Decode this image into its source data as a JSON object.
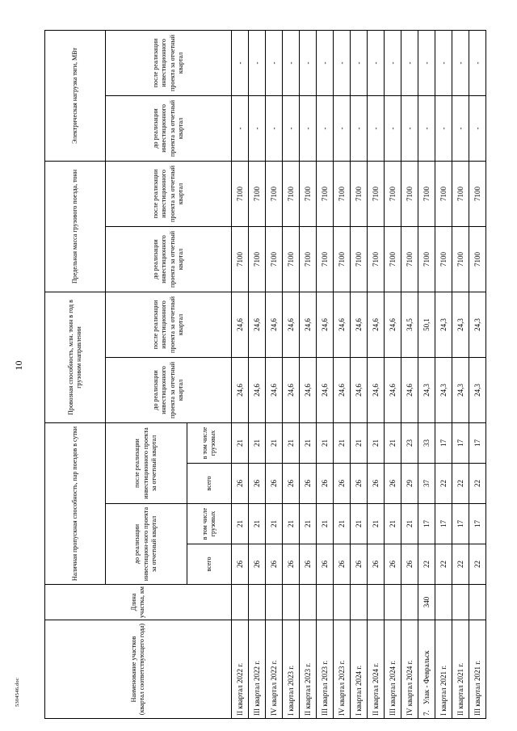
{
  "page": {
    "number": "10",
    "doc_code": "5304546.doc"
  },
  "table": {
    "headers": {
      "name": "Наименование участков\n(квартал соответствующего года)",
      "length": "Длина участка, км",
      "capacity_group": "Наличная пропускная способность, пар поездов в сутки",
      "capacity_before": "до реализации инвестицион-ного проекта за отчетный квартал",
      "capacity_after": "после реализации инвестиционного проекта за отчетный квартал",
      "total": "всего",
      "freight": "в том числе грузовых",
      "carrying_group": "Провозная способность, млн. тонн в год в грузовом направлении",
      "mass_group": "Предельная масса грузового поезда, тонн",
      "electric_group": "Электрическая нагрузка тяги, МВт",
      "before": "до реализации инвестиционного проекта за отчетный квартал",
      "after": "после реализации инвестиционного проекта за отчетный квартал"
    },
    "rows": [
      {
        "num": "",
        "name": "II квартал 2022 г.",
        "length": "",
        "cap_before_total": "26",
        "cap_before_freight": "21",
        "cap_after_total": "26",
        "cap_after_freight": "21",
        "carry_before": "24,6",
        "carry_after": "24,6",
        "mass_before": "7100",
        "mass_after": "7100",
        "electric_before": "-",
        "electric_after": "-"
      },
      {
        "num": "",
        "name": "III квартал 2022 г.",
        "length": "",
        "cap_before_total": "26",
        "cap_before_freight": "21",
        "cap_after_total": "26",
        "cap_after_freight": "21",
        "carry_before": "24,6",
        "carry_after": "24,6",
        "mass_before": "7100",
        "mass_after": "7100",
        "electric_before": "-",
        "electric_after": "-"
      },
      {
        "num": "",
        "name": "IV квартал 2022 г.",
        "length": "",
        "cap_before_total": "26",
        "cap_before_freight": "21",
        "cap_after_total": "26",
        "cap_after_freight": "21",
        "carry_before": "24,6",
        "carry_after": "24,6",
        "mass_before": "7100",
        "mass_after": "7100",
        "electric_before": "-",
        "electric_after": "-"
      },
      {
        "num": "",
        "name": "I квартал 2023 г.",
        "length": "",
        "cap_before_total": "26",
        "cap_before_freight": "21",
        "cap_after_total": "26",
        "cap_after_freight": "21",
        "carry_before": "24,6",
        "carry_after": "24,6",
        "mass_before": "7100",
        "mass_after": "7100",
        "electric_before": "-",
        "electric_after": "-"
      },
      {
        "num": "",
        "name": "II квартал 2023 г.",
        "length": "",
        "cap_before_total": "26",
        "cap_before_freight": "21",
        "cap_after_total": "26",
        "cap_after_freight": "21",
        "carry_before": "24,6",
        "carry_after": "24,6",
        "mass_before": "7100",
        "mass_after": "7100",
        "electric_before": "-",
        "electric_after": "-"
      },
      {
        "num": "",
        "name": "III квартал 2023 г.",
        "length": "",
        "cap_before_total": "26",
        "cap_before_freight": "21",
        "cap_after_total": "26",
        "cap_after_freight": "21",
        "carry_before": "24,6",
        "carry_after": "24,6",
        "mass_before": "7100",
        "mass_after": "7100",
        "electric_before": "-",
        "electric_after": "-"
      },
      {
        "num": "",
        "name": "IV квартал 2023 г.",
        "length": "",
        "cap_before_total": "26",
        "cap_before_freight": "21",
        "cap_after_total": "26",
        "cap_after_freight": "21",
        "carry_before": "24,6",
        "carry_after": "24,6",
        "mass_before": "7100",
        "mass_after": "7100",
        "electric_before": "-",
        "electric_after": "-"
      },
      {
        "num": "",
        "name": "I квартал 2024 г.",
        "length": "",
        "cap_before_total": "26",
        "cap_before_freight": "21",
        "cap_after_total": "26",
        "cap_after_freight": "21",
        "carry_before": "24,6",
        "carry_after": "24,6",
        "mass_before": "7100",
        "mass_after": "7100",
        "electric_before": "-",
        "electric_after": "-"
      },
      {
        "num": "",
        "name": "II квартал 2024 г.",
        "length": "",
        "cap_before_total": "26",
        "cap_before_freight": "21",
        "cap_after_total": "26",
        "cap_after_freight": "21",
        "carry_before": "24,6",
        "carry_after": "24,6",
        "mass_before": "7100",
        "mass_after": "7100",
        "electric_before": "-",
        "electric_after": "-"
      },
      {
        "num": "",
        "name": "III квартал 2024 г.",
        "length": "",
        "cap_before_total": "26",
        "cap_before_freight": "21",
        "cap_after_total": "26",
        "cap_after_freight": "21",
        "carry_before": "24,6",
        "carry_after": "24,6",
        "mass_before": "7100",
        "mass_after": "7100",
        "electric_before": "-",
        "electric_after": "-"
      },
      {
        "num": "",
        "name": "IV квартал 2024 г.",
        "length": "",
        "cap_before_total": "26",
        "cap_before_freight": "21",
        "cap_after_total": "29",
        "cap_after_freight": "23",
        "carry_before": "24,6",
        "carry_after": "34,5",
        "mass_before": "7100",
        "mass_after": "7100",
        "electric_before": "-",
        "electric_after": "-"
      },
      {
        "num": "7.",
        "name": "Улак - Февральск",
        "length": "340",
        "cap_before_total": "22",
        "cap_before_freight": "17",
        "cap_after_total": "37",
        "cap_after_freight": "33",
        "carry_before": "24,3",
        "carry_after": "50,1",
        "mass_before": "7100",
        "mass_after": "7100",
        "electric_before": "-",
        "electric_after": "-"
      },
      {
        "num": "",
        "name": "I квартал 2021 г.",
        "length": "",
        "cap_before_total": "22",
        "cap_before_freight": "17",
        "cap_after_total": "22",
        "cap_after_freight": "17",
        "carry_before": "24,3",
        "carry_after": "24,3",
        "mass_before": "7100",
        "mass_after": "7100",
        "electric_before": "-",
        "electric_after": "-"
      },
      {
        "num": "",
        "name": "II квартал 2021 г.",
        "length": "",
        "cap_before_total": "22",
        "cap_before_freight": "17",
        "cap_after_total": "22",
        "cap_after_freight": "17",
        "carry_before": "24,3",
        "carry_after": "24,3",
        "mass_before": "7100",
        "mass_after": "7100",
        "electric_before": "-",
        "electric_after": "-"
      },
      {
        "num": "",
        "name": "III квартал 2021 г.",
        "length": "",
        "cap_before_total": "22",
        "cap_before_freight": "17",
        "cap_after_total": "22",
        "cap_after_freight": "17",
        "carry_before": "24,3",
        "carry_after": "24,3",
        "mass_before": "7100",
        "mass_after": "7100",
        "electric_before": "-",
        "electric_after": "-"
      }
    ]
  }
}
